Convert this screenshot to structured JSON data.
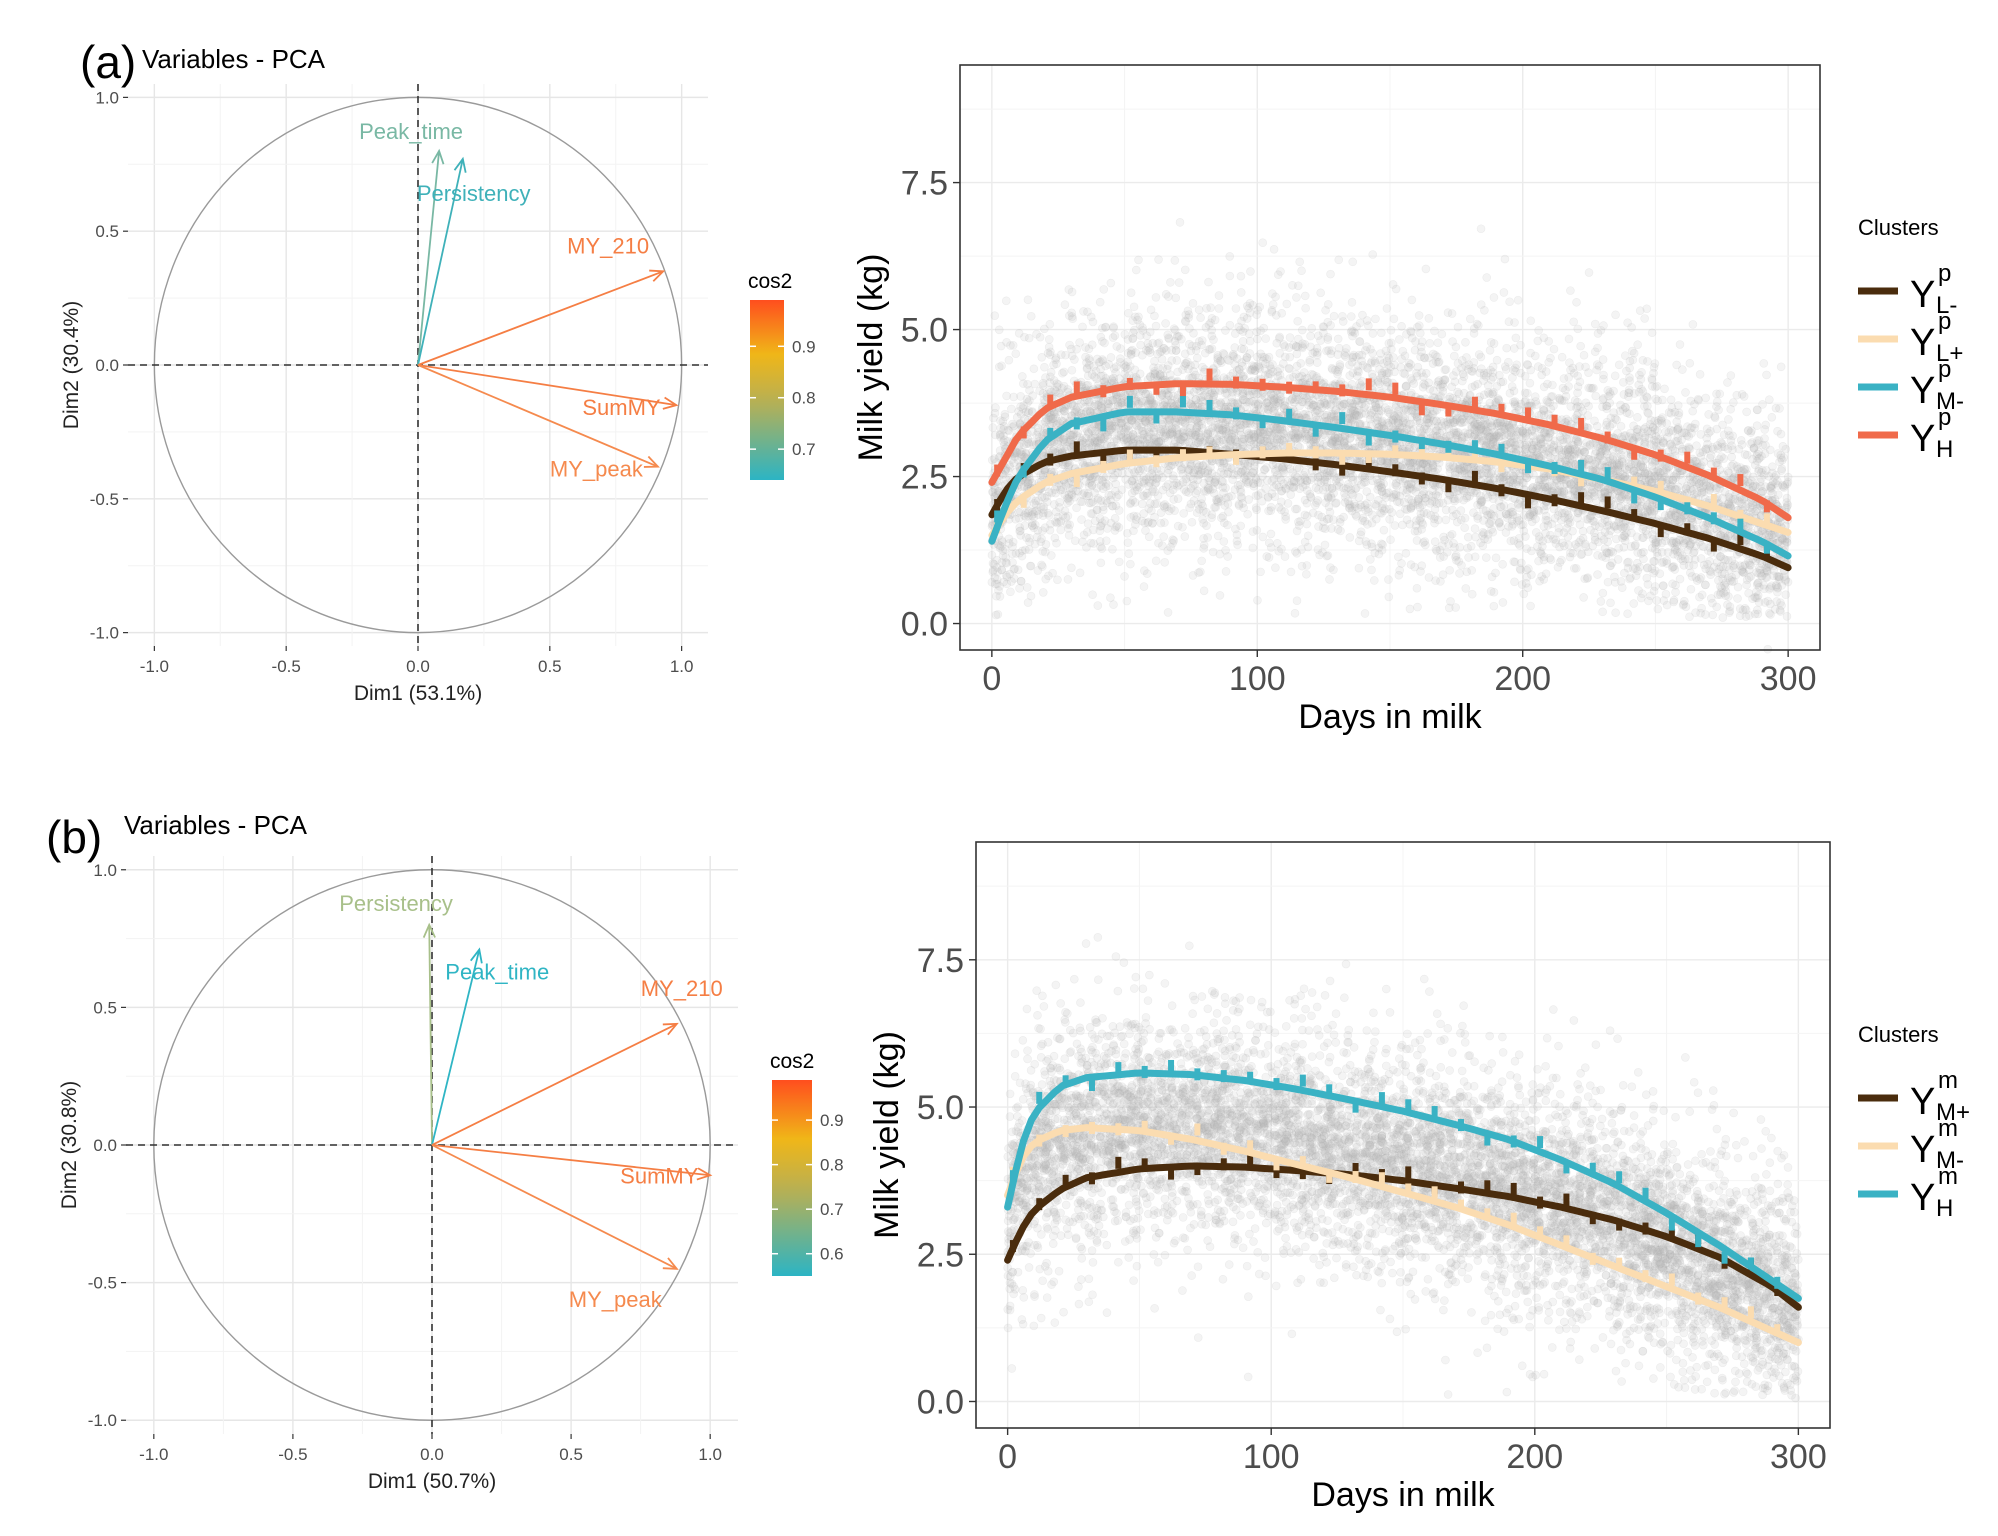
{
  "panel_labels": {
    "a": "(a)",
    "b": "(b)"
  },
  "chart_data": [
    {
      "type": "scatter",
      "subtype": "pca-variable-correlation-circle",
      "panel": "a",
      "title": "Variables - PCA",
      "xlabel": "Dim1 (53.1%)",
      "ylabel": "Dim2 (30.4%)",
      "xlim": [
        -1.0,
        1.0
      ],
      "ylim": [
        -1.0,
        1.0
      ],
      "xticks": [
        "-1.0",
        "-0.5",
        "0.0",
        "0.5",
        "1.0"
      ],
      "yticks": [
        "-1.0",
        "-0.5",
        "0.0",
        "0.5",
        "1.0"
      ],
      "grid": true,
      "legend_title": "cos2",
      "legend_ticks": [
        "0.9",
        "0.8",
        "0.7"
      ],
      "legend_tick_values": [
        0.9,
        0.8,
        0.7
      ],
      "legend_range": [
        0.64,
        0.99
      ],
      "legend_placement": "right",
      "vectors": [
        {
          "name": "Peak_time",
          "x": 0.08,
          "y": 0.8,
          "cos2": 0.65,
          "color": "#79b8a4"
        },
        {
          "name": "Persistency",
          "x": 0.17,
          "y": 0.77,
          "cos2": 0.66,
          "color": "#3fb1b9"
        },
        {
          "name": "MY_210",
          "x": 0.93,
          "y": 0.35,
          "cos2": 0.98,
          "color": "#f57e44"
        },
        {
          "name": "SumMY",
          "x": 0.98,
          "y": -0.15,
          "cos2": 0.98,
          "color": "#f57e44"
        },
        {
          "name": "MY_peak",
          "x": 0.91,
          "y": -0.38,
          "cos2": 0.97,
          "color": "#f58a4e"
        }
      ]
    },
    {
      "type": "line",
      "panel": "a",
      "title": "",
      "xlabel": "Days in milk",
      "ylabel": "Milk yield (kg)",
      "xlim": [
        -12,
        312
      ],
      "ylim": [
        -0.45,
        9.5
      ],
      "xticks": [
        "0",
        "100",
        "200",
        "300"
      ],
      "yticks": [
        "0.0",
        "2.5",
        "5.0",
        "7.5"
      ],
      "grid": true,
      "legend_title": "Clusters",
      "legend_placement": "right",
      "background": "raw test-day milk yield records (grey points)",
      "series": [
        {
          "name": "Y",
          "sup": "p",
          "sub": "L-",
          "color": "#4a2c0d",
          "x": [
            0,
            5,
            10,
            20,
            30,
            50,
            70,
            90,
            110,
            130,
            150,
            170,
            190,
            210,
            230,
            250,
            270,
            290,
            300
          ],
          "values": [
            1.85,
            2.25,
            2.5,
            2.75,
            2.85,
            2.95,
            2.95,
            2.88,
            2.8,
            2.7,
            2.58,
            2.45,
            2.3,
            2.12,
            1.92,
            1.7,
            1.45,
            1.15,
            0.95
          ]
        },
        {
          "name": "Y",
          "sup": "p",
          "sub": "L+",
          "color": "#fbdcb0",
          "x": [
            0,
            5,
            10,
            20,
            30,
            50,
            70,
            90,
            110,
            130,
            150,
            170,
            190,
            210,
            230,
            250,
            270,
            290,
            300
          ],
          "values": [
            1.5,
            1.85,
            2.1,
            2.4,
            2.55,
            2.72,
            2.82,
            2.87,
            2.9,
            2.9,
            2.88,
            2.83,
            2.75,
            2.63,
            2.45,
            2.25,
            2.0,
            1.7,
            1.55
          ]
        },
        {
          "name": "Y",
          "sup": "p",
          "sub": "M-",
          "color": "#3ab2c4",
          "x": [
            0,
            5,
            10,
            20,
            30,
            50,
            70,
            90,
            110,
            130,
            150,
            170,
            190,
            210,
            230,
            250,
            270,
            290,
            300
          ],
          "values": [
            1.4,
            2.0,
            2.5,
            3.1,
            3.4,
            3.6,
            3.6,
            3.55,
            3.45,
            3.33,
            3.2,
            3.05,
            2.88,
            2.68,
            2.45,
            2.15,
            1.8,
            1.4,
            1.15
          ]
        },
        {
          "name": "Y",
          "sup": "p",
          "sub": "H",
          "color": "#f06a4a",
          "x": [
            0,
            5,
            10,
            20,
            30,
            50,
            70,
            90,
            110,
            130,
            150,
            170,
            190,
            210,
            230,
            250,
            270,
            290,
            300
          ],
          "values": [
            2.4,
            2.8,
            3.2,
            3.65,
            3.85,
            4.03,
            4.08,
            4.07,
            4.02,
            3.95,
            3.85,
            3.72,
            3.57,
            3.38,
            3.15,
            2.87,
            2.52,
            2.1,
            1.8
          ]
        }
      ]
    },
    {
      "type": "scatter",
      "subtype": "pca-variable-correlation-circle",
      "panel": "b",
      "title": "Variables - PCA",
      "xlabel": "Dim1 (50.7%)",
      "ylabel": "Dim2 (30.8%)",
      "xlim": [
        -1.0,
        1.0
      ],
      "ylim": [
        -1.0,
        1.0
      ],
      "xticks": [
        "-1.0",
        "-0.5",
        "0.0",
        "0.5",
        "1.0"
      ],
      "yticks": [
        "-1.0",
        "-0.5",
        "0.0",
        "0.5",
        "1.0"
      ],
      "grid": true,
      "legend_title": "cos2",
      "legend_ticks": [
        "0.9",
        "0.8",
        "0.7",
        "0.6"
      ],
      "legend_tick_values": [
        0.9,
        0.8,
        0.7,
        0.6
      ],
      "legend_range": [
        0.55,
        0.99
      ],
      "legend_placement": "right",
      "vectors": [
        {
          "name": "Persistency",
          "x": -0.01,
          "y": 0.8,
          "cos2": 0.64,
          "color": "#a8c08a"
        },
        {
          "name": "Peak_time",
          "x": 0.17,
          "y": 0.71,
          "cos2": 0.6,
          "color": "#2fb5c4"
        },
        {
          "name": "MY_210",
          "x": 0.88,
          "y": 0.44,
          "cos2": 0.98,
          "color": "#f57e44"
        },
        {
          "name": "SumMY",
          "x": 1.0,
          "y": -0.11,
          "cos2": 0.98,
          "color": "#f57e44"
        },
        {
          "name": "MY_peak",
          "x": 0.88,
          "y": -0.45,
          "cos2": 0.97,
          "color": "#f58a4e"
        }
      ]
    },
    {
      "type": "line",
      "panel": "b",
      "title": "",
      "xlabel": "Days in milk",
      "ylabel": "Milk yield (kg)",
      "xlim": [
        -12,
        312
      ],
      "ylim": [
        -0.45,
        9.5
      ],
      "xticks": [
        "0",
        "100",
        "200",
        "300"
      ],
      "yticks": [
        "0.0",
        "2.5",
        "5.0",
        "7.5"
      ],
      "grid": true,
      "legend_title": "Clusters",
      "legend_placement": "right",
      "background": "raw test-day milk yield records (grey points)",
      "series": [
        {
          "name": "Y",
          "sup": "m",
          "sub": "M+",
          "color": "#4a2c0d",
          "x": [
            0,
            5,
            10,
            20,
            30,
            50,
            70,
            90,
            110,
            130,
            150,
            170,
            190,
            210,
            230,
            250,
            270,
            290,
            300
          ],
          "values": [
            2.4,
            2.9,
            3.25,
            3.6,
            3.8,
            3.95,
            4.0,
            3.98,
            3.92,
            3.85,
            3.75,
            3.62,
            3.48,
            3.3,
            3.08,
            2.8,
            2.45,
            1.95,
            1.6
          ]
        },
        {
          "name": "Y",
          "sup": "m",
          "sub": "M-",
          "color": "#fbdcb0",
          "x": [
            0,
            5,
            10,
            20,
            30,
            50,
            70,
            90,
            110,
            130,
            150,
            170,
            190,
            210,
            230,
            250,
            270,
            290,
            300
          ],
          "values": [
            3.5,
            4.1,
            4.4,
            4.6,
            4.65,
            4.6,
            4.45,
            4.25,
            4.02,
            3.8,
            3.55,
            3.3,
            3.0,
            2.65,
            2.3,
            1.95,
            1.6,
            1.2,
            1.0
          ]
        },
        {
          "name": "Y",
          "sup": "m",
          "sub": "H",
          "color": "#3ab2c4",
          "x": [
            0,
            5,
            10,
            20,
            30,
            50,
            70,
            90,
            110,
            130,
            150,
            170,
            190,
            210,
            230,
            250,
            270,
            290,
            300
          ],
          "values": [
            3.3,
            4.3,
            4.9,
            5.35,
            5.5,
            5.58,
            5.55,
            5.45,
            5.3,
            5.12,
            4.93,
            4.7,
            4.45,
            4.1,
            3.7,
            3.2,
            2.65,
            2.05,
            1.75
          ]
        }
      ]
    }
  ]
}
